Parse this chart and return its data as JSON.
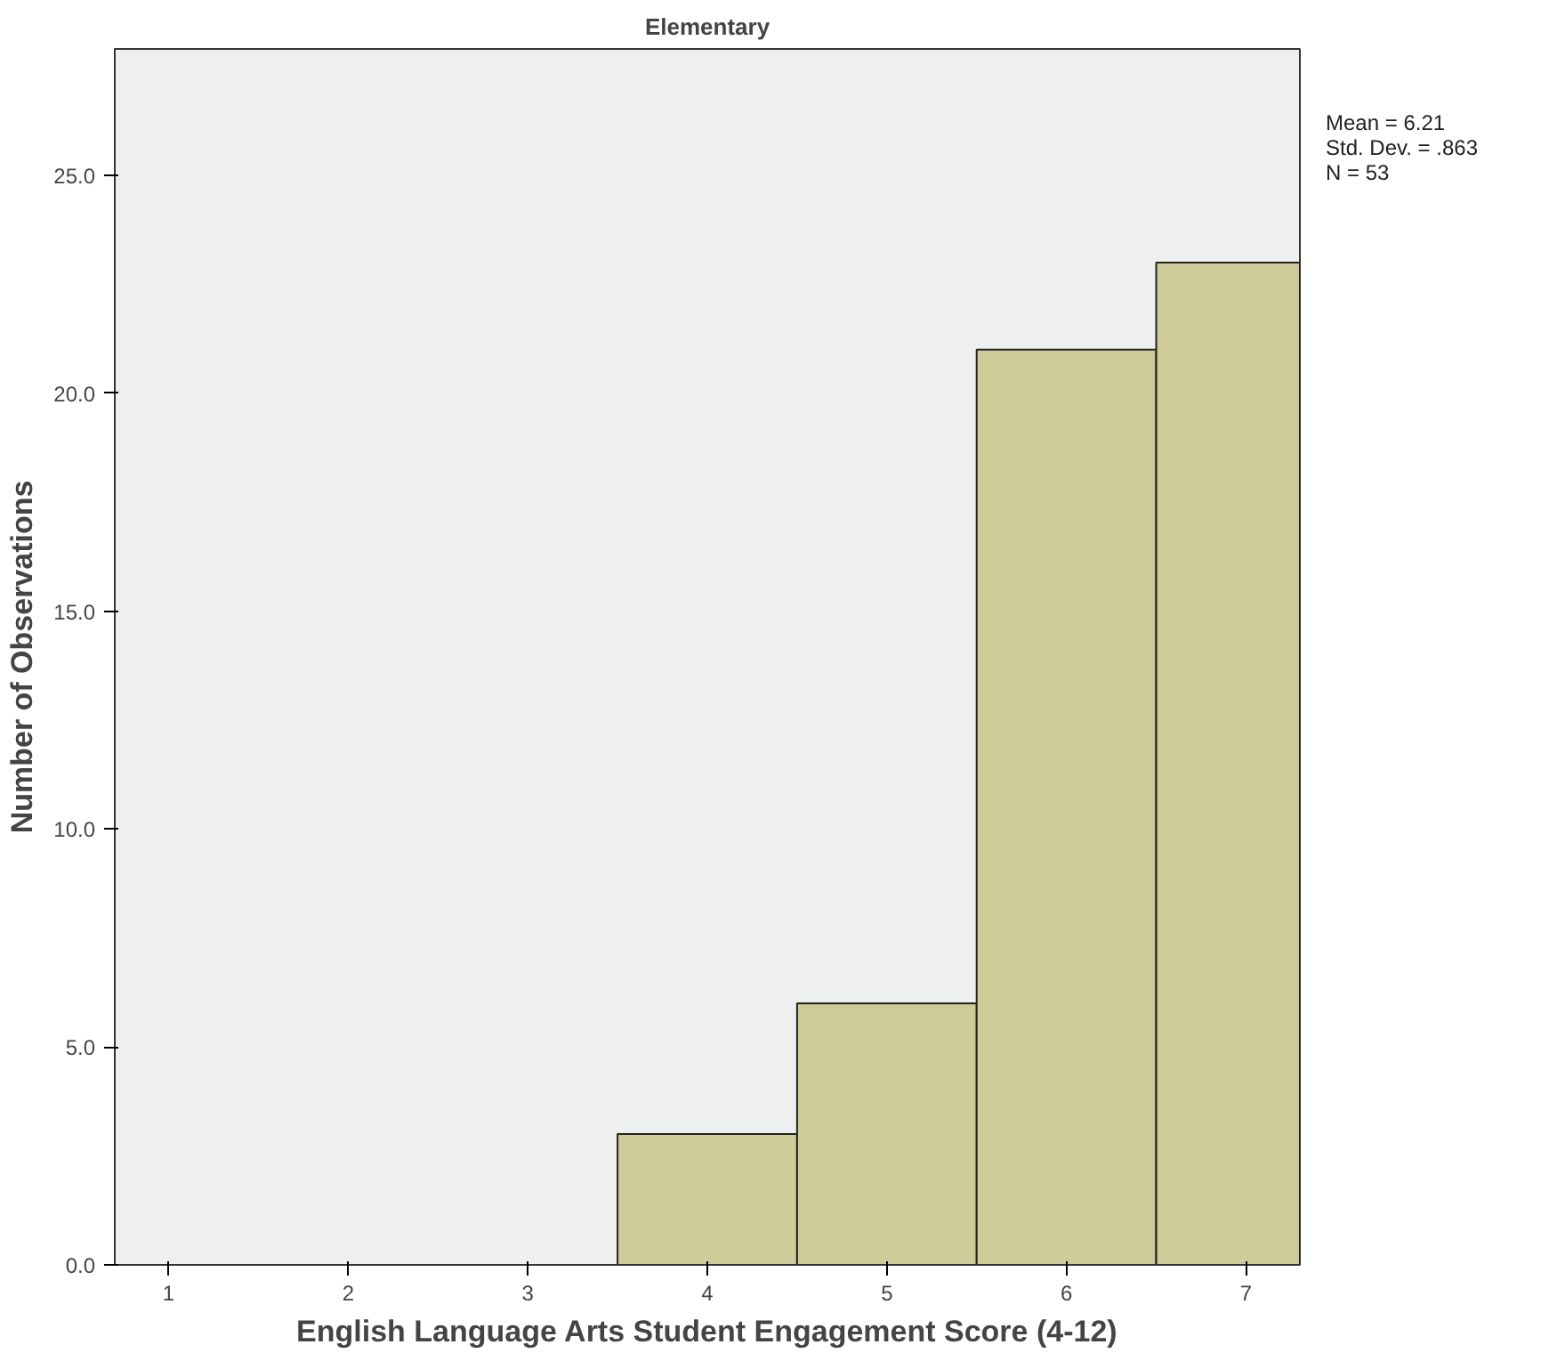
{
  "chart_data": {
    "type": "histogram",
    "title": "Elementary",
    "xlabel": "English Language Arts Student Engagement Score (4-12)",
    "ylabel": "Number of Observations",
    "bins": [
      3.5,
      4.5,
      5.5,
      6.5,
      7.3
    ],
    "values": [
      3,
      6,
      21,
      23
    ],
    "color": "#cfcb99",
    "xlim": [
      0.7,
      7.3
    ],
    "xticks": [
      1,
      2,
      3,
      4,
      5,
      6,
      7
    ],
    "ylim": [
      0,
      27.9
    ],
    "yticks": [
      {
        "value": 0,
        "label": "0.0"
      },
      {
        "value": 5,
        "label": "5.0"
      },
      {
        "value": 10,
        "label": "10.0"
      },
      {
        "value": 15,
        "label": "15.0"
      },
      {
        "value": 20,
        "label": "20.0"
      },
      {
        "value": 25,
        "label": "25.0"
      }
    ],
    "grid": false,
    "annotations": [
      "Mean = 6.21",
      "Std. Dev. = .863",
      "N = 53"
    ]
  }
}
